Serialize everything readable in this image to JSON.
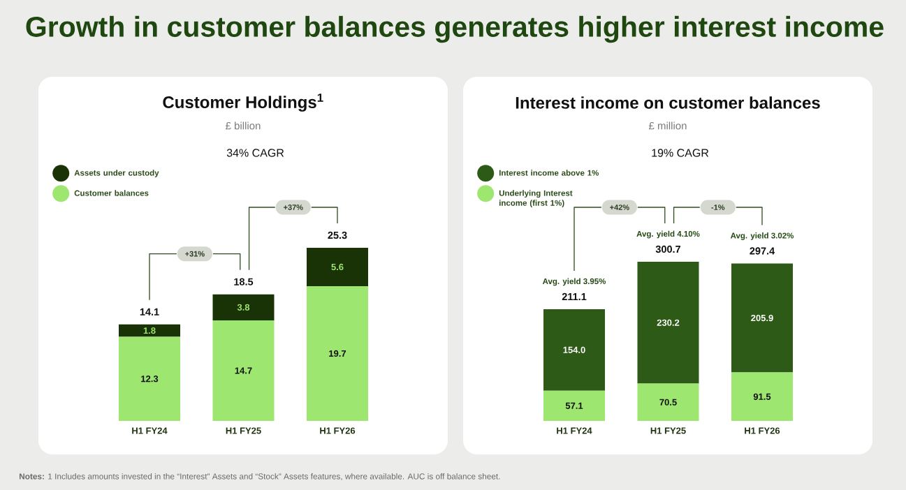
{
  "chart_data": [
    {
      "type": "bar",
      "stacked": true,
      "title": "Customer Holdings$^{1}$",
      "subtitle": "£ billion",
      "categories": [
        "H1 FY24",
        "H1 FY25",
        "H1 FY26"
      ],
      "series": [
        {
          "name": "Customer balances",
          "color": "#9de66f",
          "values": [
            12.3,
            14.7,
            19.7
          ]
        },
        {
          "name": "Assets under custody",
          "color": "#1a3306",
          "values": [
            1.8,
            3.8,
            5.6
          ]
        }
      ],
      "totals": [
        "14.1",
        "18.5",
        "25.3"
      ],
      "data_labels": true,
      "legend": "top left",
      "tick_labels": "x",
      "annotations": [
        "Growth in customer balances generates higher interest income",
        "34% CAGR",
        "+31%",
        "+37%",
        "**Notes:** 1 Includes amounts invested in the “Interest” Assets and “Stock” Assets features, where available. AUC is off balance sheet."
      ]
    },
    {
      "type": "bar",
      "stacked": true,
      "title": "Interest income on customer balances",
      "subtitle": "£ million",
      "categories": [
        "H1 FY24",
        "H1 FY25",
        "H1 FY26"
      ],
      "series": [
        {
          "name": "Underlying Interest income (first 1%)",
          "color": "#9de66f",
          "values": [
            57.1,
            70.5,
            91.5
          ],
          "value_labels": [
            "57.1",
            "70.5",
            "91.5"
          ]
        },
        {
          "name": "Interest income above 1%",
          "color": "#2d5a17",
          "values": [
            154.0,
            230.2,
            205.9
          ],
          "value_labels": [
            "154.0",
            "230.2",
            "205.9"
          ]
        }
      ],
      "totals": [
        "211.1",
        "300.7",
        "297.4"
      ],
      "legend": "top left",
      "tick_labels": "x",
      "annotations": [
        {
          "text": "Avg. yield 3.95%",
          "x": "H1 FY24",
          "y": 211.1
        },
        {
          "text": "Avg. yield 4.10%",
          "x": "H1 FY25",
          "y": 300.7
        },
        {
          "text": "Avg. yield 3.02%",
          "x": "H1 FY26",
          "y": 297.4
        },
        "19% CAGR",
        "+42%",
        "-1%"
      ]
    }
  ]
}
